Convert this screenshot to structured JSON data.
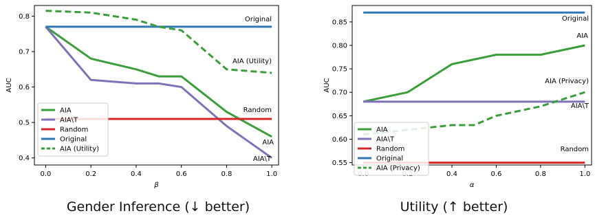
{
  "captions": {
    "left": "Gender Inference (↓ better)",
    "right": "Utility (↑ better)"
  },
  "chart_data": [
    {
      "type": "line",
      "caption": "Gender Inference (↓ better)",
      "xlabel": "β",
      "ylabel": "AUC",
      "xlim": [
        -0.05,
        1.03
      ],
      "ylim": [
        0.38,
        0.83
      ],
      "xticks": [
        "0.0",
        "0.2",
        "0.4",
        "0.6",
        "0.8",
        "1.0"
      ],
      "yticks": [
        "0.4",
        "0.5",
        "0.6",
        "0.7",
        "0.8"
      ],
      "legend_position": "lower-left",
      "grid": false,
      "series": [
        {
          "name": "AIA",
          "color": "#3a9e3a",
          "dash": "solid",
          "label": "AIA",
          "x": [
            0.0,
            0.2,
            0.4,
            0.5,
            0.6,
            0.8,
            1.0
          ],
          "y": [
            0.77,
            0.68,
            0.65,
            0.63,
            0.63,
            0.53,
            0.46
          ]
        },
        {
          "name": "AIA\\T",
          "color": "#7f72b8",
          "dash": "solid",
          "label": "AIA\\T",
          "x": [
            0.0,
            0.2,
            0.4,
            0.5,
            0.6,
            0.8,
            1.0
          ],
          "y": [
            0.77,
            0.62,
            0.61,
            0.61,
            0.6,
            0.49,
            0.4
          ]
        },
        {
          "name": "Random",
          "color": "#d62728",
          "dash": "solid",
          "label": "Random",
          "x": [
            0.0,
            1.0
          ],
          "y": [
            0.51,
            0.51
          ]
        },
        {
          "name": "Original",
          "color": "#2f78b5",
          "dash": "solid",
          "label": "Original",
          "x": [
            0.0,
            1.0
          ],
          "y": [
            0.77,
            0.77
          ]
        },
        {
          "name": "AIA (Utility)",
          "color": "#3a9e3a",
          "dash": "dashed",
          "label": "AIA (Utility)",
          "x": [
            0.0,
            0.2,
            0.4,
            0.5,
            0.6,
            0.8,
            1.0
          ],
          "y": [
            0.815,
            0.81,
            0.79,
            0.77,
            0.76,
            0.65,
            0.64
          ]
        }
      ]
    },
    {
      "type": "line",
      "caption": "Utility (↑ better)",
      "xlabel": "α",
      "ylabel": "AUC",
      "xlim": [
        -0.05,
        1.03
      ],
      "ylim": [
        0.545,
        0.885
      ],
      "xticks": [
        "0.0",
        "0.2",
        "0.4",
        "0.6",
        "0.8",
        "1.0"
      ],
      "yticks": [
        "0.55",
        "0.60",
        "0.65",
        "0.70",
        "0.75",
        "0.80",
        "0.85"
      ],
      "legend_position": "lower-left",
      "grid": false,
      "series": [
        {
          "name": "AIA",
          "color": "#3a9e3a",
          "dash": "solid",
          "label": "AIA",
          "x": [
            0.0,
            0.2,
            0.4,
            0.6,
            0.8,
            1.0
          ],
          "y": [
            0.68,
            0.7,
            0.76,
            0.78,
            0.78,
            0.8
          ]
        },
        {
          "name": "AIA\\T",
          "color": "#7f72b8",
          "dash": "solid",
          "label": "AIA\\T",
          "x": [
            0.0,
            1.0
          ],
          "y": [
            0.68,
            0.68
          ]
        },
        {
          "name": "Random",
          "color": "#d62728",
          "dash": "solid",
          "label": "Random",
          "x": [
            0.0,
            1.0
          ],
          "y": [
            0.55,
            0.55
          ]
        },
        {
          "name": "Original",
          "color": "#2f78b5",
          "dash": "solid",
          "label": "Original",
          "x": [
            0.0,
            1.0
          ],
          "y": [
            0.87,
            0.87
          ]
        },
        {
          "name": "AIA (Privacy)",
          "color": "#3a9e3a",
          "dash": "dashed",
          "label": "AIA (Privacy)",
          "x": [
            0.0,
            0.2,
            0.4,
            0.5,
            0.6,
            0.8,
            1.0
          ],
          "y": [
            0.61,
            0.62,
            0.63,
            0.63,
            0.65,
            0.67,
            0.7
          ]
        }
      ]
    }
  ]
}
